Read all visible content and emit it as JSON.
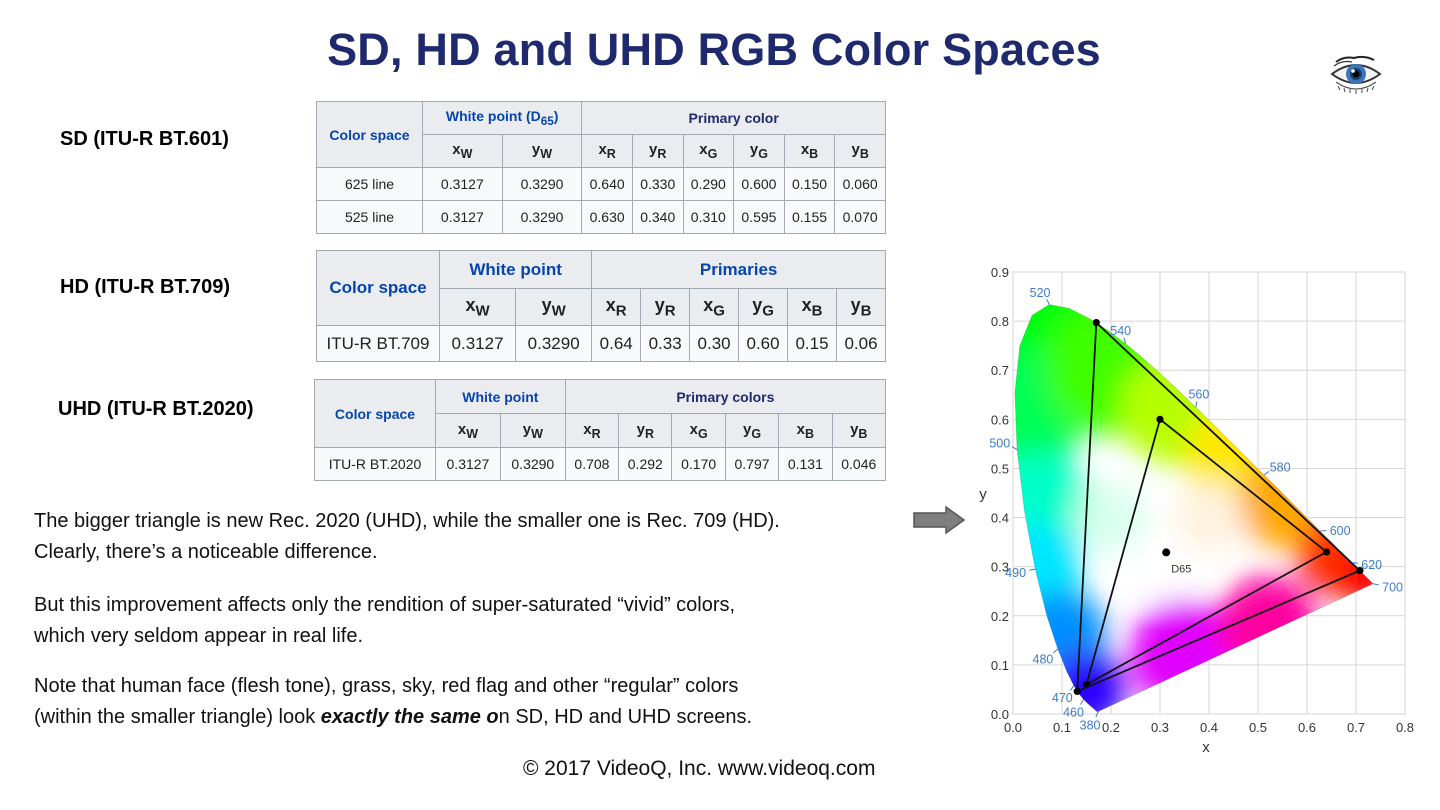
{
  "title": "SD, HD and UHD RGB Color Spaces",
  "sd": {
    "label": "SD (ITU-R BT.601)",
    "header": {
      "color_space": "Color space",
      "white_point": "White point (D65)",
      "primary": "Primary color"
    },
    "cols": [
      "xW",
      "yW",
      "xR",
      "yR",
      "xG",
      "yG",
      "xB",
      "yB"
    ],
    "rows": [
      {
        "name": "625 line",
        "values": [
          "0.3127",
          "0.3290",
          "0.640",
          "0.330",
          "0.290",
          "0.600",
          "0.150",
          "0.060"
        ]
      },
      {
        "name": "525 line",
        "values": [
          "0.3127",
          "0.3290",
          "0.630",
          "0.340",
          "0.310",
          "0.595",
          "0.155",
          "0.070"
        ]
      }
    ]
  },
  "hd": {
    "label": "HD (ITU-R BT.709)",
    "header": {
      "color_space": "Color space",
      "white_point": "White point",
      "primary": "Primaries"
    },
    "cols": [
      "xW",
      "yW",
      "xR",
      "yR",
      "xG",
      "yG",
      "xB",
      "yB"
    ],
    "rows": [
      {
        "name": "ITU-R BT.709",
        "values": [
          "0.3127",
          "0.3290",
          "0.64",
          "0.33",
          "0.30",
          "0.60",
          "0.15",
          "0.06"
        ]
      }
    ]
  },
  "uhd": {
    "label": "UHD (ITU-R BT.2020)",
    "header": {
      "color_space": "Color space",
      "white_point": "White point",
      "primary": "Primary colors"
    },
    "cols": [
      "xW",
      "yW",
      "xR",
      "yR",
      "xG",
      "yG",
      "xB",
      "yB"
    ],
    "rows": [
      {
        "name": "ITU-R BT.2020",
        "values": [
          "0.3127",
          "0.3290",
          "0.708",
          "0.292",
          "0.170",
          "0.797",
          "0.131",
          "0.046"
        ]
      }
    ]
  },
  "paragraphs": {
    "p1_line1": "The bigger triangle is new Rec. 2020 (UHD), while the smaller one is Rec. 709 (HD).",
    "p1_line2": "Clearly, there’s a noticeable difference.",
    "p2_line1": "But this improvement affects only the rendition of super-saturated “vivid” colors,",
    "p2_line2": "which very seldom appear in real life.",
    "p3_line1": "Note that human face (flesh tone), grass, sky, red flag and other “regular” colors",
    "p3_line2_a": "(within the smaller triangle) look ",
    "p3_line2_em": "exactly the same o",
    "p3_line2_b": "n SD, HD  and UHD screens."
  },
  "footer": "© 2017 VideoQ, Inc. www.videoq.com",
  "colors": {
    "title": "#1f2a6e",
    "table_header_text": "#0645ad",
    "table_border": "#a2a9b1",
    "wavelength_label": "#3d7cc9"
  },
  "chart_data": {
    "type": "scatter",
    "title": "",
    "xlabel": "x",
    "ylabel": "y",
    "xlim": [
      0.0,
      0.8
    ],
    "ylim": [
      0.0,
      0.9
    ],
    "x_ticks": [
      "0.0",
      "0.1",
      "0.2",
      "0.3",
      "0.4",
      "0.5",
      "0.6",
      "0.7",
      "0.8"
    ],
    "y_ticks": [
      "0.0",
      "0.1",
      "0.2",
      "0.3",
      "0.4",
      "0.5",
      "0.6",
      "0.7",
      "0.8",
      "0.9"
    ],
    "grid": true,
    "white_point": {
      "label": "D65",
      "x": 0.3127,
      "y": 0.329
    },
    "triangles": [
      {
        "points": [
          [
            0.64,
            0.33
          ],
          [
            0.3,
            0.6
          ],
          [
            0.15,
            0.06
          ]
        ]
      },
      {
        "points": [
          [
            0.708,
            0.292
          ],
          [
            0.17,
            0.797
          ],
          [
            0.131,
            0.046
          ]
        ]
      }
    ],
    "wavelength_labels": [
      {
        "text": "380",
        "x": 0.1741,
        "y": 0.005
      },
      {
        "text": "460",
        "x": 0.144,
        "y": 0.0297
      },
      {
        "text": "470",
        "x": 0.1241,
        "y": 0.0578
      },
      {
        "text": "480",
        "x": 0.0913,
        "y": 0.1327
      },
      {
        "text": "490",
        "x": 0.0454,
        "y": 0.295
      },
      {
        "text": "500",
        "x": 0.0082,
        "y": 0.5384
      },
      {
        "text": "520",
        "x": 0.0743,
        "y": 0.8338
      },
      {
        "text": "540",
        "x": 0.2296,
        "y": 0.7543
      },
      {
        "text": "560",
        "x": 0.3731,
        "y": 0.6245
      },
      {
        "text": "580",
        "x": 0.5125,
        "y": 0.4866
      },
      {
        "text": "600",
        "x": 0.627,
        "y": 0.3725
      },
      {
        "text": "620",
        "x": 0.6915,
        "y": 0.3083
      },
      {
        "text": "700",
        "x": 0.7347,
        "y": 0.2653
      }
    ],
    "locus": [
      [
        0.1741,
        0.005
      ],
      [
        0.1738,
        0.0049
      ],
      [
        0.1736,
        0.0049
      ],
      [
        0.1733,
        0.0048
      ],
      [
        0.173,
        0.0048
      ],
      [
        0.1726,
        0.0048
      ],
      [
        0.1721,
        0.0048
      ],
      [
        0.1714,
        0.0051
      ],
      [
        0.1703,
        0.0058
      ],
      [
        0.1689,
        0.0069
      ],
      [
        0.1669,
        0.0086
      ],
      [
        0.1644,
        0.0109
      ],
      [
        0.1611,
        0.0138
      ],
      [
        0.1566,
        0.0177
      ],
      [
        0.151,
        0.0227
      ],
      [
        0.144,
        0.0297
      ],
      [
        0.1355,
        0.0399
      ],
      [
        0.1241,
        0.0578
      ],
      [
        0.1096,
        0.0868
      ],
      [
        0.0913,
        0.1327
      ],
      [
        0.0687,
        0.2007
      ],
      [
        0.0454,
        0.295
      ],
      [
        0.0235,
        0.4127
      ],
      [
        0.0082,
        0.5384
      ],
      [
        0.0039,
        0.6548
      ],
      [
        0.0139,
        0.7502
      ],
      [
        0.0389,
        0.812
      ],
      [
        0.0743,
        0.8338
      ],
      [
        0.1142,
        0.8262
      ],
      [
        0.1547,
        0.8059
      ],
      [
        0.1929,
        0.7816
      ],
      [
        0.2296,
        0.7543
      ],
      [
        0.2658,
        0.7243
      ],
      [
        0.3016,
        0.6923
      ],
      [
        0.3373,
        0.6589
      ],
      [
        0.3731,
        0.6245
      ],
      [
        0.4087,
        0.5896
      ],
      [
        0.4441,
        0.5547
      ],
      [
        0.4788,
        0.5202
      ],
      [
        0.5125,
        0.4866
      ],
      [
        0.5448,
        0.4544
      ],
      [
        0.5752,
        0.4242
      ],
      [
        0.6029,
        0.3965
      ],
      [
        0.627,
        0.3725
      ],
      [
        0.6482,
        0.3514
      ],
      [
        0.6658,
        0.334
      ],
      [
        0.6801,
        0.3197
      ],
      [
        0.6915,
        0.3083
      ],
      [
        0.7006,
        0.2993
      ],
      [
        0.7079,
        0.292
      ],
      [
        0.714,
        0.2859
      ],
      [
        0.719,
        0.2809
      ],
      [
        0.723,
        0.277
      ],
      [
        0.726,
        0.274
      ],
      [
        0.7283,
        0.2717
      ],
      [
        0.73,
        0.27
      ],
      [
        0.7347,
        0.2653
      ]
    ]
  }
}
